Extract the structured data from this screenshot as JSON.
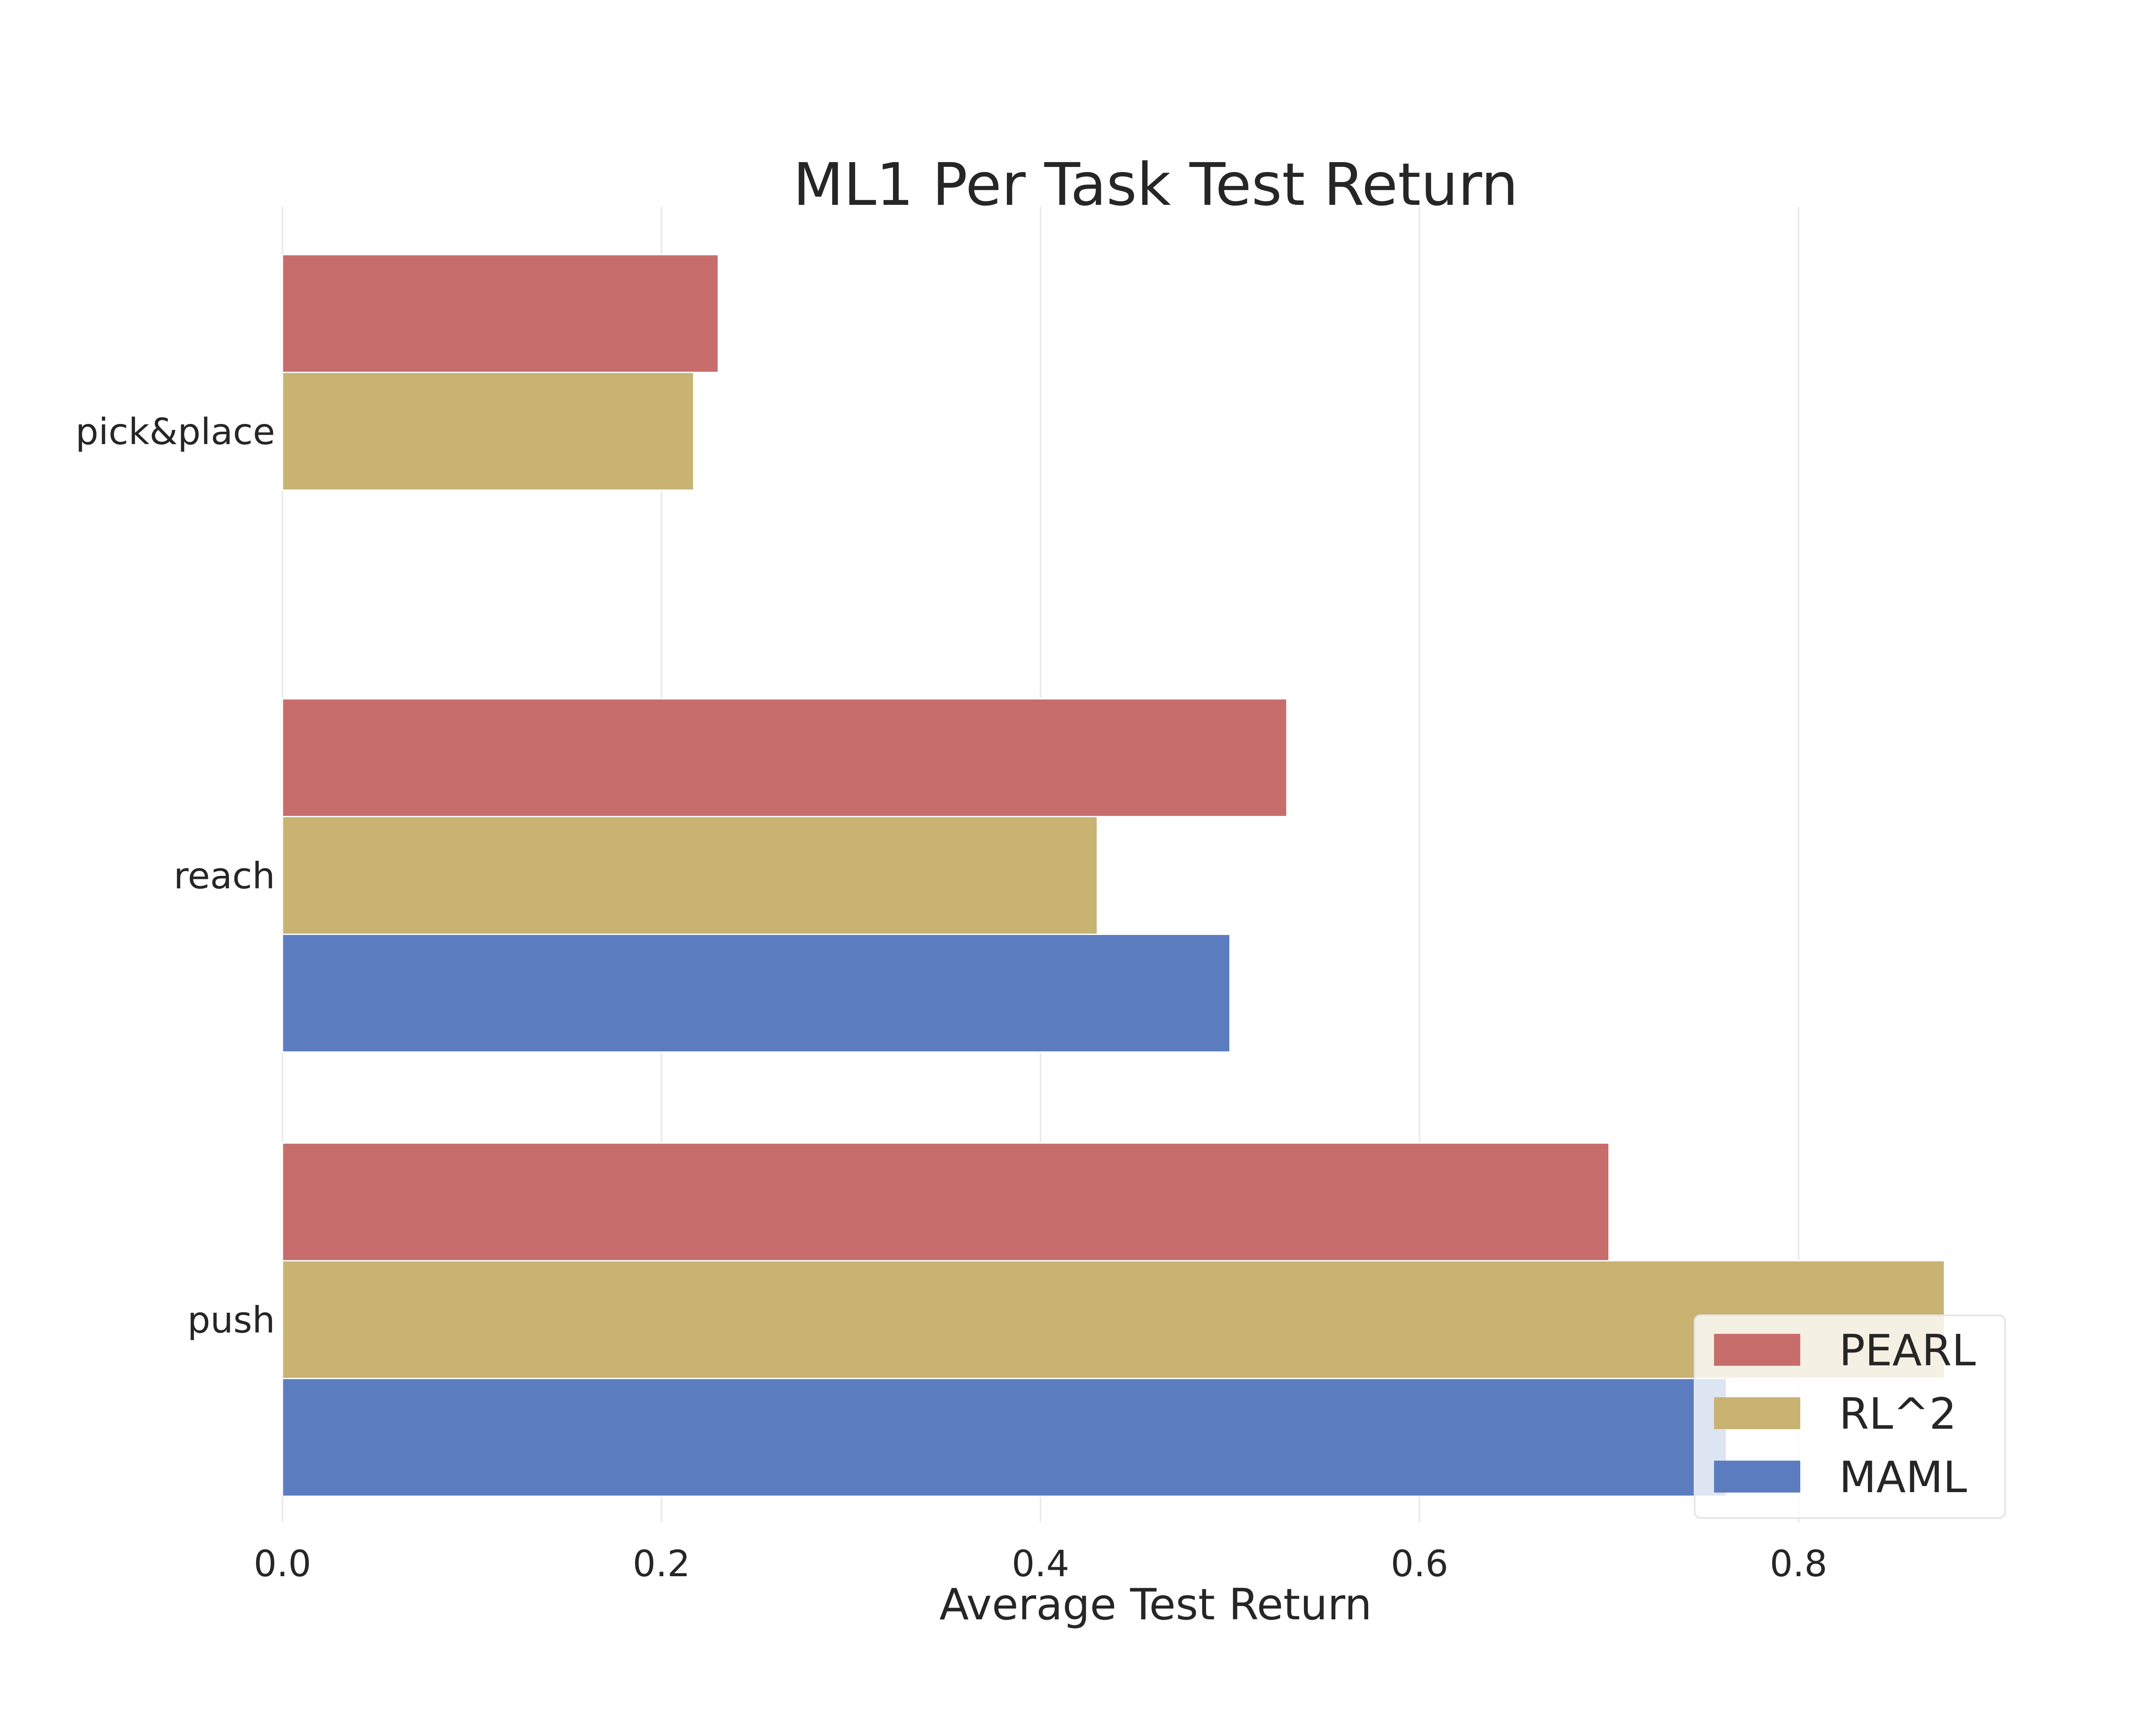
{
  "chart_data": {
    "type": "bar",
    "orientation": "horizontal",
    "title": "ML1 Per Task Test Return",
    "xlabel": "Average Test Return",
    "ylabel": "",
    "xlim": [
      0.0,
      0.9
    ],
    "xticks": [
      "0.0",
      "0.2",
      "0.4",
      "0.6",
      "0.8"
    ],
    "categories": [
      "pick&place",
      "reach",
      "push"
    ],
    "series": [
      {
        "name": "PEARL",
        "color": "#c76e6d",
        "values": [
          0.23,
          0.53,
          0.7
        ]
      },
      {
        "name": "RL^2",
        "color": "#c8b373",
        "values": [
          0.217,
          0.43,
          0.877
        ]
      },
      {
        "name": "MAML",
        "color": "#5b7dbf",
        "values": [
          null,
          0.5,
          0.762
        ]
      }
    ],
    "grid": "vertical",
    "legend_position": "bottom-right"
  }
}
